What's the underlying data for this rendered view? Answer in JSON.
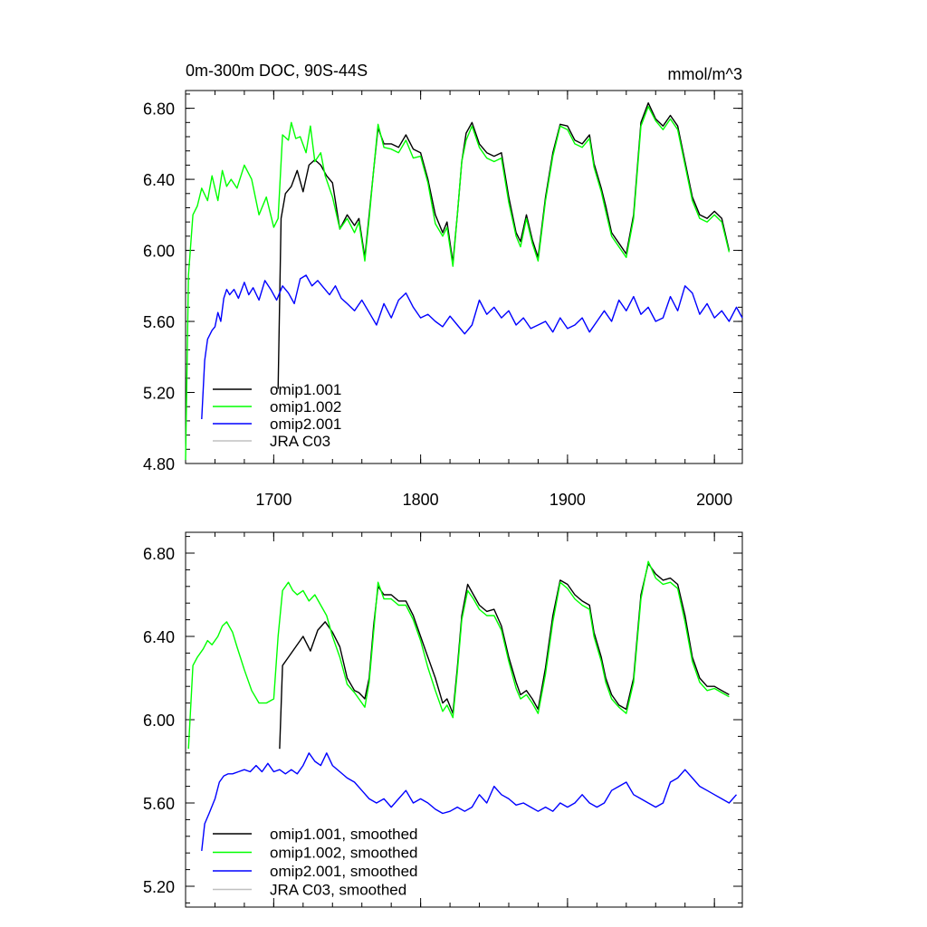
{
  "figure": {
    "title_left": "0m-300m DOC, 90S-44S",
    "title_right": "mmol/m^3"
  },
  "chart_data": [
    {
      "type": "line",
      "title": "0m-300m DOC, 90S-44S",
      "units": "mmol/m^3",
      "xlabel": "",
      "ylabel": "",
      "xlim": [
        1640,
        2019
      ],
      "ylim": [
        4.8,
        6.9
      ],
      "xticks": [
        1700,
        1800,
        1900,
        2000
      ],
      "xtick_labels": [
        "1700",
        "1800",
        "1900",
        "2000"
      ],
      "yticks": [
        4.8,
        5.2,
        5.6,
        6.0,
        6.4,
        6.8
      ],
      "ytick_labels": [
        "4.80",
        "5.20",
        "5.60",
        "6.00",
        "6.40",
        "6.80"
      ],
      "legend": [
        "omip1.001",
        "omip1.002",
        "omip2.001",
        "JRA C03"
      ],
      "series": [
        {
          "name": "omip1.001",
          "color": "#000000",
          "x": [
            1703,
            1705,
            1708,
            1712,
            1716,
            1720,
            1724,
            1728,
            1732,
            1736,
            1740,
            1745,
            1750,
            1755,
            1758,
            1762,
            1765,
            1768,
            1771,
            1775,
            1780,
            1785,
            1790,
            1795,
            1800,
            1805,
            1810,
            1815,
            1818,
            1822,
            1825,
            1828,
            1831,
            1835,
            1840,
            1845,
            1850,
            1855,
            1860,
            1865,
            1868,
            1872,
            1876,
            1880,
            1885,
            1890,
            1895,
            1900,
            1905,
            1910,
            1915,
            1918,
            1923,
            1926,
            1930,
            1935,
            1940,
            1945,
            1950,
            1955,
            1960,
            1965,
            1970,
            1975,
            1980,
            1985,
            1990,
            1995,
            2000,
            2005,
            2010
          ],
          "y": [
            5.22,
            6.18,
            6.32,
            6.36,
            6.45,
            6.33,
            6.48,
            6.51,
            6.48,
            6.42,
            6.38,
            6.12,
            6.2,
            6.14,
            6.18,
            5.96,
            6.2,
            6.45,
            6.69,
            6.6,
            6.6,
            6.58,
            6.65,
            6.57,
            6.55,
            6.4,
            6.2,
            6.1,
            6.16,
            5.93,
            6.2,
            6.5,
            6.66,
            6.72,
            6.6,
            6.55,
            6.53,
            6.55,
            6.3,
            6.1,
            6.05,
            6.2,
            6.06,
            5.96,
            6.3,
            6.55,
            6.71,
            6.7,
            6.62,
            6.6,
            6.65,
            6.49,
            6.35,
            6.25,
            6.1,
            6.04,
            5.98,
            6.2,
            6.72,
            6.83,
            6.74,
            6.7,
            6.76,
            6.7,
            6.5,
            6.3,
            6.2,
            6.18,
            6.22,
            6.18,
            6.0
          ]
        },
        {
          "name": "omip1.002",
          "color": "#00ff00",
          "x": [
            1640,
            1642,
            1645,
            1648,
            1651,
            1655,
            1658,
            1662,
            1665,
            1668,
            1671,
            1675,
            1680,
            1685,
            1690,
            1695,
            1700,
            1703,
            1706,
            1710,
            1712,
            1715,
            1718,
            1722,
            1725,
            1728,
            1732,
            1735,
            1740,
            1745,
            1750,
            1755,
            1758,
            1762,
            1765,
            1768,
            1771,
            1775,
            1780,
            1785,
            1790,
            1795,
            1800,
            1805,
            1810,
            1815,
            1818,
            1822,
            1825,
            1828,
            1831,
            1835,
            1840,
            1845,
            1850,
            1855,
            1860,
            1865,
            1868,
            1872,
            1876,
            1880,
            1885,
            1890,
            1895,
            1900,
            1905,
            1910,
            1915,
            1918,
            1923,
            1926,
            1930,
            1935,
            1940,
            1945,
            1950,
            1955,
            1960,
            1965,
            1970,
            1975,
            1980,
            1985,
            1990,
            1995,
            2000,
            2005,
            2010
          ],
          "y": [
            4.82,
            5.86,
            6.2,
            6.25,
            6.35,
            6.28,
            6.42,
            6.28,
            6.45,
            6.36,
            6.4,
            6.35,
            6.48,
            6.4,
            6.2,
            6.3,
            6.13,
            6.18,
            6.65,
            6.62,
            6.72,
            6.63,
            6.64,
            6.55,
            6.7,
            6.5,
            6.55,
            6.42,
            6.3,
            6.12,
            6.18,
            6.1,
            6.16,
            5.94,
            6.18,
            6.45,
            6.71,
            6.58,
            6.57,
            6.55,
            6.62,
            6.52,
            6.53,
            6.38,
            6.15,
            6.08,
            6.13,
            5.91,
            6.2,
            6.5,
            6.62,
            6.7,
            6.58,
            6.52,
            6.5,
            6.52,
            6.27,
            6.08,
            6.02,
            6.18,
            6.04,
            5.94,
            6.28,
            6.53,
            6.7,
            6.68,
            6.6,
            6.58,
            6.63,
            6.47,
            6.33,
            6.22,
            6.08,
            6.02,
            5.96,
            6.18,
            6.7,
            6.81,
            6.73,
            6.68,
            6.74,
            6.68,
            6.48,
            6.28,
            6.18,
            6.16,
            6.2,
            6.16,
            5.99
          ]
        },
        {
          "name": "omip2.001",
          "color": "#0000ff",
          "x": [
            1651,
            1653,
            1655,
            1658,
            1660,
            1662,
            1664,
            1666,
            1668,
            1670,
            1673,
            1676,
            1680,
            1683,
            1686,
            1690,
            1694,
            1698,
            1702,
            1706,
            1710,
            1714,
            1718,
            1722,
            1726,
            1730,
            1734,
            1738,
            1742,
            1746,
            1750,
            1755,
            1760,
            1765,
            1770,
            1775,
            1780,
            1785,
            1790,
            1795,
            1800,
            1805,
            1810,
            1815,
            1820,
            1825,
            1830,
            1835,
            1840,
            1845,
            1850,
            1855,
            1860,
            1865,
            1870,
            1875,
            1880,
            1885,
            1890,
            1895,
            1900,
            1905,
            1910,
            1915,
            1920,
            1925,
            1930,
            1935,
            1940,
            1945,
            1950,
            1955,
            1960,
            1965,
            1970,
            1975,
            1980,
            1985,
            1990,
            1995,
            2000,
            2005,
            2010,
            2015,
            2019
          ],
          "y": [
            5.05,
            5.38,
            5.5,
            5.55,
            5.57,
            5.65,
            5.6,
            5.73,
            5.78,
            5.75,
            5.78,
            5.73,
            5.82,
            5.75,
            5.79,
            5.72,
            5.83,
            5.78,
            5.72,
            5.8,
            5.76,
            5.7,
            5.84,
            5.86,
            5.8,
            5.83,
            5.79,
            5.75,
            5.8,
            5.73,
            5.7,
            5.66,
            5.72,
            5.65,
            5.58,
            5.7,
            5.62,
            5.72,
            5.76,
            5.68,
            5.62,
            5.64,
            5.6,
            5.57,
            5.63,
            5.58,
            5.53,
            5.58,
            5.72,
            5.64,
            5.68,
            5.62,
            5.66,
            5.58,
            5.62,
            5.56,
            5.58,
            5.6,
            5.54,
            5.62,
            5.56,
            5.58,
            5.62,
            5.54,
            5.6,
            5.66,
            5.6,
            5.72,
            5.66,
            5.74,
            5.64,
            5.68,
            5.6,
            5.62,
            5.74,
            5.66,
            5.8,
            5.76,
            5.64,
            5.7,
            5.62,
            5.66,
            5.6,
            5.68,
            5.62
          ]
        },
        {
          "name": "JRA C03",
          "color": "#c0c0c0",
          "x": [],
          "y": []
        }
      ]
    },
    {
      "type": "line",
      "title": "",
      "xlabel": "",
      "ylabel": "",
      "xlim": [
        1640,
        2019
      ],
      "ylim": [
        5.1,
        6.9
      ],
      "xticks": [
        1700,
        1800,
        1900,
        2000
      ],
      "xtick_labels": [],
      "yticks": [
        5.2,
        5.6,
        6.0,
        6.4,
        6.8
      ],
      "ytick_labels": [
        "5.20",
        "5.60",
        "6.00",
        "6.40",
        "6.80"
      ],
      "legend": [
        "omip1.001, smoothed",
        "omip1.002, smoothed",
        "omip2.001, smoothed",
        "JRA C03, smoothed"
      ],
      "series": [
        {
          "name": "omip1.001, smoothed",
          "color": "#000000",
          "x": [
            1704,
            1706,
            1710,
            1715,
            1720,
            1725,
            1730,
            1735,
            1740,
            1745,
            1750,
            1755,
            1758,
            1762,
            1765,
            1768,
            1771,
            1775,
            1780,
            1785,
            1790,
            1795,
            1800,
            1805,
            1810,
            1815,
            1818,
            1822,
            1825,
            1828,
            1832,
            1836,
            1840,
            1845,
            1850,
            1855,
            1860,
            1865,
            1868,
            1872,
            1876,
            1880,
            1885,
            1890,
            1895,
            1900,
            1905,
            1910,
            1915,
            1918,
            1923,
            1926,
            1930,
            1935,
            1940,
            1945,
            1950,
            1955,
            1960,
            1965,
            1970,
            1975,
            1980,
            1985,
            1990,
            1995,
            2000,
            2005,
            2010
          ],
          "y": [
            5.86,
            6.26,
            6.3,
            6.35,
            6.4,
            6.33,
            6.43,
            6.47,
            6.42,
            6.35,
            6.2,
            6.14,
            6.13,
            6.1,
            6.2,
            6.45,
            6.64,
            6.6,
            6.6,
            6.57,
            6.57,
            6.5,
            6.4,
            6.3,
            6.2,
            6.08,
            6.1,
            6.03,
            6.25,
            6.5,
            6.65,
            6.6,
            6.55,
            6.52,
            6.53,
            6.45,
            6.3,
            6.18,
            6.12,
            6.14,
            6.1,
            6.05,
            6.25,
            6.5,
            6.67,
            6.65,
            6.6,
            6.57,
            6.55,
            6.42,
            6.3,
            6.2,
            6.12,
            6.07,
            6.05,
            6.2,
            6.6,
            6.75,
            6.7,
            6.67,
            6.68,
            6.65,
            6.5,
            6.3,
            6.2,
            6.16,
            6.16,
            6.14,
            6.12
          ]
        },
        {
          "name": "omip1.002, smoothed",
          "color": "#00ff00",
          "x": [
            1642,
            1645,
            1648,
            1652,
            1655,
            1658,
            1662,
            1665,
            1668,
            1672,
            1675,
            1680,
            1685,
            1690,
            1695,
            1700,
            1703,
            1706,
            1710,
            1713,
            1716,
            1720,
            1724,
            1728,
            1732,
            1736,
            1740,
            1745,
            1750,
            1755,
            1758,
            1762,
            1765,
            1768,
            1771,
            1775,
            1780,
            1785,
            1790,
            1795,
            1800,
            1805,
            1810,
            1815,
            1818,
            1822,
            1825,
            1828,
            1832,
            1836,
            1840,
            1845,
            1850,
            1855,
            1860,
            1865,
            1868,
            1872,
            1876,
            1880,
            1885,
            1890,
            1895,
            1900,
            1905,
            1910,
            1915,
            1918,
            1923,
            1926,
            1930,
            1935,
            1940,
            1945,
            1950,
            1955,
            1960,
            1965,
            1970,
            1975,
            1980,
            1985,
            1990,
            1995,
            2000,
            2005,
            2010
          ],
          "y": [
            5.86,
            6.26,
            6.3,
            6.34,
            6.38,
            6.36,
            6.4,
            6.45,
            6.47,
            6.42,
            6.35,
            6.24,
            6.14,
            6.08,
            6.08,
            6.1,
            6.4,
            6.62,
            6.66,
            6.62,
            6.6,
            6.62,
            6.57,
            6.6,
            6.55,
            6.5,
            6.4,
            6.3,
            6.17,
            6.13,
            6.1,
            6.06,
            6.18,
            6.42,
            6.66,
            6.58,
            6.58,
            6.55,
            6.55,
            6.48,
            6.38,
            6.25,
            6.14,
            6.04,
            6.07,
            6.01,
            6.23,
            6.48,
            6.62,
            6.58,
            6.53,
            6.5,
            6.5,
            6.43,
            6.28,
            6.15,
            6.1,
            6.12,
            6.08,
            6.03,
            6.22,
            6.47,
            6.66,
            6.63,
            6.58,
            6.55,
            6.53,
            6.4,
            6.28,
            6.18,
            6.1,
            6.06,
            6.03,
            6.18,
            6.58,
            6.76,
            6.68,
            6.65,
            6.66,
            6.63,
            6.47,
            6.28,
            6.18,
            6.14,
            6.15,
            6.13,
            6.11
          ]
        },
        {
          "name": "omip2.001, smoothed",
          "color": "#0000ff",
          "x": [
            1651,
            1653,
            1656,
            1660,
            1663,
            1666,
            1669,
            1672,
            1676,
            1680,
            1684,
            1688,
            1692,
            1696,
            1700,
            1704,
            1708,
            1712,
            1716,
            1720,
            1724,
            1728,
            1732,
            1736,
            1740,
            1745,
            1750,
            1755,
            1760,
            1765,
            1770,
            1775,
            1780,
            1785,
            1790,
            1795,
            1800,
            1805,
            1810,
            1815,
            1820,
            1825,
            1830,
            1835,
            1840,
            1845,
            1850,
            1855,
            1860,
            1865,
            1870,
            1875,
            1880,
            1885,
            1890,
            1895,
            1900,
            1905,
            1910,
            1915,
            1920,
            1925,
            1930,
            1935,
            1940,
            1945,
            1950,
            1955,
            1960,
            1965,
            1970,
            1975,
            1980,
            1985,
            1990,
            1995,
            2000,
            2005,
            2010,
            2015
          ],
          "y": [
            5.37,
            5.5,
            5.55,
            5.62,
            5.7,
            5.73,
            5.74,
            5.74,
            5.75,
            5.76,
            5.75,
            5.78,
            5.75,
            5.79,
            5.75,
            5.76,
            5.74,
            5.76,
            5.74,
            5.78,
            5.84,
            5.8,
            5.78,
            5.84,
            5.78,
            5.75,
            5.72,
            5.7,
            5.66,
            5.62,
            5.6,
            5.62,
            5.58,
            5.62,
            5.66,
            5.6,
            5.62,
            5.6,
            5.57,
            5.55,
            5.56,
            5.58,
            5.56,
            5.58,
            5.64,
            5.6,
            5.68,
            5.64,
            5.62,
            5.59,
            5.6,
            5.58,
            5.56,
            5.58,
            5.56,
            5.6,
            5.58,
            5.6,
            5.64,
            5.6,
            5.58,
            5.6,
            5.66,
            5.68,
            5.7,
            5.64,
            5.62,
            5.6,
            5.58,
            5.6,
            5.7,
            5.72,
            5.76,
            5.72,
            5.68,
            5.66,
            5.64,
            5.62,
            5.6,
            5.64
          ]
        },
        {
          "name": "JRA C03, smoothed",
          "color": "#c0c0c0",
          "x": [],
          "y": []
        }
      ]
    }
  ]
}
